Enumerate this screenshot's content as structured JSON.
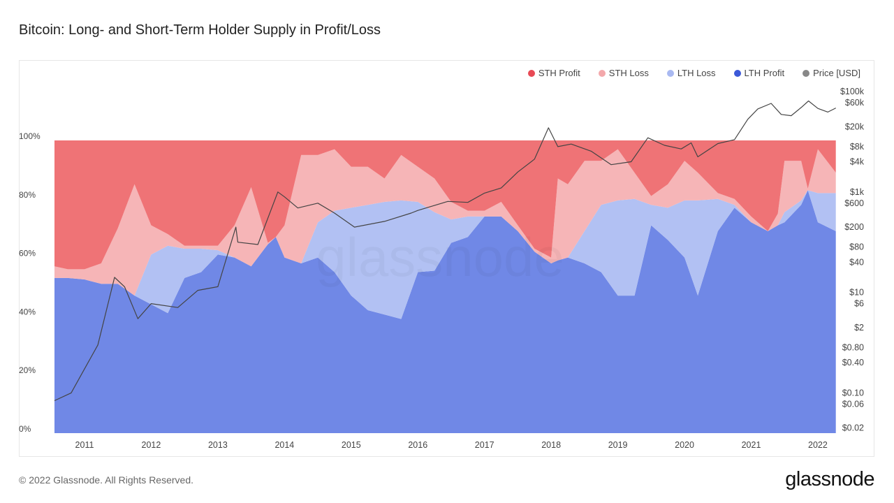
{
  "title": "Bitcoin: Long- and Short-Term Holder Supply in Profit/Loss",
  "footer": "© 2022 Glassnode. All Rights Reserved.",
  "logo": "glassnode",
  "watermark": "glassnode",
  "legend": [
    {
      "label": "STH Profit",
      "color": "#e84a55"
    },
    {
      "label": "STH Loss",
      "color": "#f3a8ab"
    },
    {
      "label": "LTH Loss",
      "color": "#a9b9f1"
    },
    {
      "label": "LTH Profit",
      "color": "#3c59d8"
    },
    {
      "label": "Price [USD]",
      "color": "#888888"
    }
  ],
  "chart_data": {
    "type": "area",
    "stacked": true,
    "title": "Bitcoin: Long- and Short-Term Holder Supply in Profit/Loss",
    "ylabel": "",
    "y_left": {
      "range": [
        0,
        100
      ],
      "unit": "%",
      "ticks": [
        "0%",
        "20%",
        "40%",
        "60%",
        "80%",
        "100%"
      ]
    },
    "y_right": {
      "scale": "log",
      "range": [
        0.02,
        100000
      ],
      "ticks": [
        "$100k",
        "$60k",
        "$20k",
        "$8k",
        "$4k",
        "$1k",
        "$600",
        "$200",
        "$80",
        "$40",
        "$10",
        "$6",
        "$2",
        "$0.80",
        "$0.40",
        "$0.10",
        "$0.06",
        "$0.02"
      ],
      "tick_values": [
        100000,
        60000,
        20000,
        8000,
        4000,
        1000,
        600,
        200,
        80,
        40,
        10,
        6,
        2,
        0.8,
        0.4,
        0.1,
        0.06,
        0.02
      ]
    },
    "x_ticks": [
      "2011",
      "2012",
      "2013",
      "2014",
      "2015",
      "2016",
      "2017",
      "2018",
      "2019",
      "2020",
      "2021",
      "2022"
    ],
    "x_range": [
      2010.55,
      2022.27
    ],
    "grid": false,
    "legend_position": "top-right",
    "x": [
      2010.55,
      2010.75,
      2011.0,
      2011.25,
      2011.5,
      2011.75,
      2012.0,
      2012.25,
      2012.5,
      2012.75,
      2013.0,
      2013.25,
      2013.5,
      2013.75,
      2013.87,
      2014.0,
      2014.25,
      2014.5,
      2014.75,
      2015.0,
      2015.25,
      2015.5,
      2015.75,
      2016.0,
      2016.25,
      2016.5,
      2016.75,
      2017.0,
      2017.25,
      2017.5,
      2017.75,
      2018.0,
      2018.1,
      2018.25,
      2018.5,
      2018.75,
      2019.0,
      2019.25,
      2019.5,
      2019.75,
      2020.0,
      2020.2,
      2020.5,
      2020.75,
      2021.0,
      2021.25,
      2021.4,
      2021.5,
      2021.75,
      2021.85,
      2022.0,
      2022.27
    ],
    "series": [
      {
        "name": "LTH Profit",
        "color": "#7088e6",
        "values": [
          53,
          53,
          52.5,
          51,
          51,
          47,
          44,
          41,
          53,
          55,
          61,
          60,
          57,
          64.5,
          67,
          60,
          58,
          60,
          55,
          47,
          42,
          40.5,
          39,
          55,
          55.5,
          65,
          67,
          74,
          74,
          69,
          62,
          58,
          59,
          60,
          58,
          55,
          47,
          47,
          71,
          66,
          60,
          47,
          69,
          77,
          72,
          69,
          71,
          72,
          78,
          83,
          72,
          69
        ]
      },
      {
        "name": "LTH Loss",
        "color": "#b2c1f3",
        "values": [
          0,
          0,
          0,
          0,
          0,
          0,
          17,
          23,
          10,
          8,
          1.5,
          0,
          0,
          0,
          0,
          0,
          0,
          12,
          21,
          30,
          36,
          38.5,
          40.5,
          24,
          20,
          8,
          7,
          0,
          0,
          0,
          0,
          0,
          0,
          0,
          11,
          23,
          32.5,
          33,
          7,
          11,
          19.5,
          32.5,
          11,
          1,
          0,
          0,
          0,
          3.5,
          1.5,
          0,
          10,
          13
        ]
      },
      {
        "name": "STH Loss",
        "color": "#f6b5b7",
        "values": [
          4,
          3,
          3.5,
          7,
          19,
          38,
          10,
          4,
          1,
          1,
          1.5,
          11,
          27,
          0.5,
          0,
          11,
          37,
          23,
          21,
          14,
          13,
          8,
          15.5,
          12,
          11.5,
          6,
          2,
          2,
          5,
          2,
          1,
          2,
          28,
          25,
          24,
          15,
          17.5,
          9,
          3,
          8,
          13.5,
          9.5,
          2,
          2,
          2,
          0,
          4,
          17.5,
          13.5,
          0.5,
          15,
          7
        ]
      },
      {
        "name": "STH Profit",
        "color": "#ef7376",
        "values": [
          43,
          44,
          44,
          42,
          30,
          15,
          29,
          32,
          36,
          36,
          36,
          29,
          16,
          35,
          33,
          29,
          5,
          5,
          3,
          9,
          9,
          13,
          5,
          9,
          13,
          21,
          24,
          24,
          21,
          29,
          37,
          40,
          13,
          15,
          7,
          7,
          3,
          11,
          19,
          15,
          7,
          11,
          18,
          20,
          26,
          31,
          25,
          7,
          7,
          16.5,
          3,
          11
        ]
      }
    ],
    "price": {
      "name": "Price [USD]",
      "color": "#444444",
      "x": [
        2010.55,
        2010.8,
        2011.0,
        2011.2,
        2011.45,
        2011.6,
        2011.8,
        2012.0,
        2012.4,
        2012.7,
        2013.0,
        2013.27,
        2013.3,
        2013.6,
        2013.9,
        2014.0,
        2014.2,
        2014.5,
        2014.75,
        2015.05,
        2015.5,
        2015.9,
        2016.0,
        2016.45,
        2016.75,
        2017.0,
        2017.25,
        2017.5,
        2017.75,
        2017.96,
        2018.1,
        2018.3,
        2018.6,
        2018.9,
        2019.2,
        2019.45,
        2019.7,
        2019.95,
        2020.1,
        2020.2,
        2020.5,
        2020.75,
        2020.95,
        2021.1,
        2021.3,
        2021.45,
        2021.6,
        2021.75,
        2021.86,
        2022.0,
        2022.15,
        2022.27
      ],
      "values": [
        0.07,
        0.1,
        0.3,
        0.9,
        20,
        13,
        3,
        6,
        5,
        11,
        13,
        200,
        100,
        90,
        1000,
        800,
        480,
        600,
        380,
        200,
        260,
        380,
        430,
        650,
        620,
        950,
        1200,
        2500,
        4500,
        19000,
        8000,
        9000,
        6500,
        3500,
        4000,
        12000,
        8500,
        7200,
        9500,
        5000,
        9200,
        11000,
        28000,
        45000,
        58000,
        35000,
        33000,
        48000,
        65000,
        46000,
        39000,
        47000
      ]
    }
  }
}
